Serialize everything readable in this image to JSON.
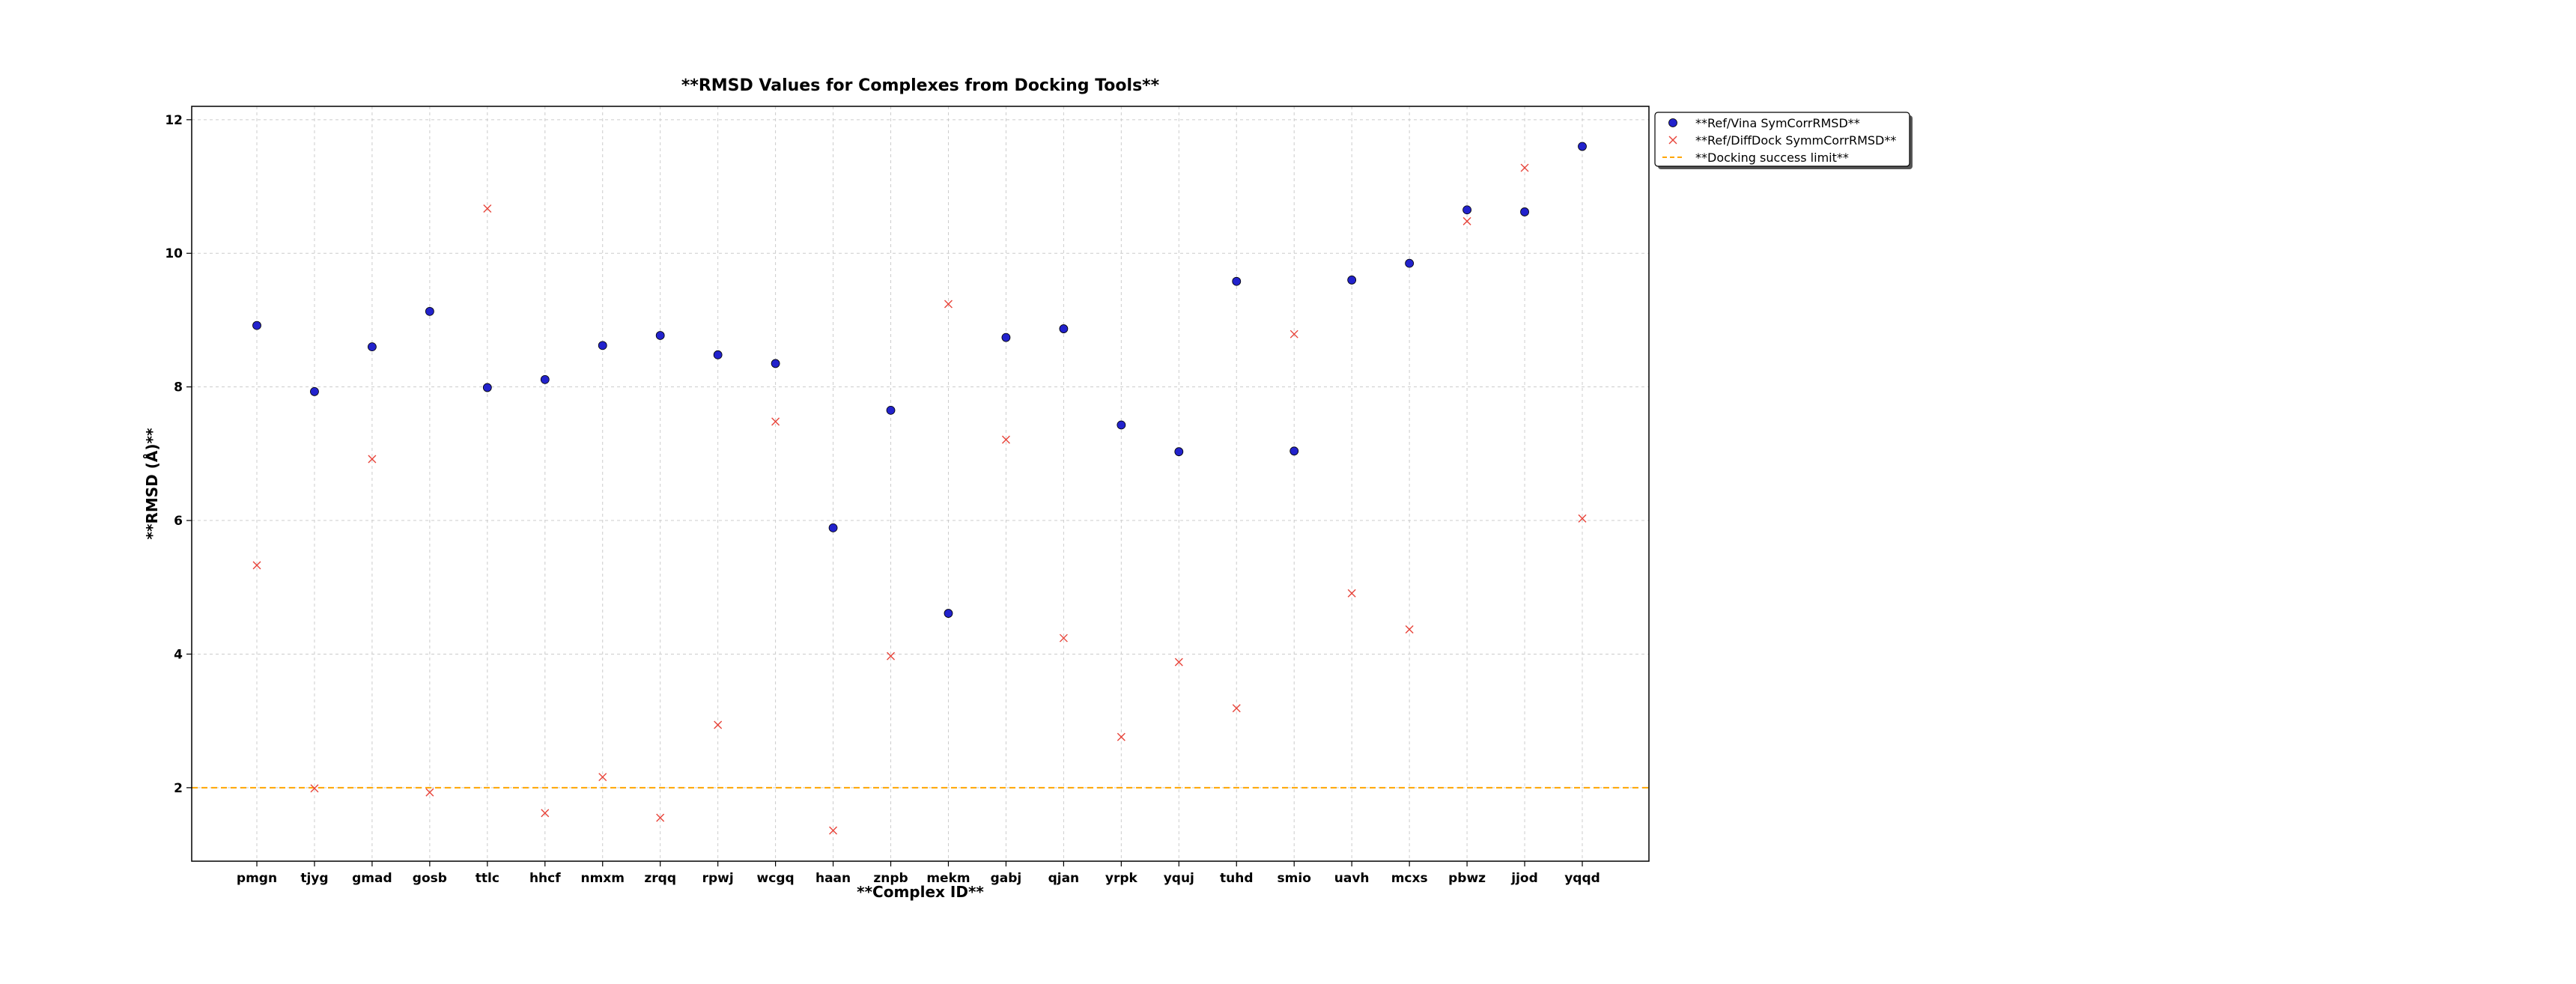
{
  "chart_data": {
    "type": "scatter",
    "title": "**RMSD Values for Complexes from Docking Tools**",
    "xlabel": "**Complex ID**",
    "ylabel": "**RMSD (Å)**",
    "categories": [
      "pmgn",
      "tjyg",
      "gmad",
      "gosb",
      "ttlc",
      "hhcf",
      "nmxm",
      "zrqq",
      "rpwj",
      "wcgq",
      "haan",
      "znpb",
      "mekm",
      "gabj",
      "qjan",
      "yrpk",
      "yquj",
      "tuhd",
      "smio",
      "uavh",
      "mcxs",
      "pbwz",
      "jjod",
      "yqqd"
    ],
    "ylim": [
      0.9,
      12.2
    ],
    "yticks": [
      2,
      4,
      6,
      8,
      10,
      12
    ],
    "grid": true,
    "legend_position": "outside-top-right",
    "series": [
      {
        "name": "**Ref/Vina SymCorrRMSD**",
        "marker": "circle",
        "color": "#2222cc",
        "values": [
          8.92,
          7.93,
          8.6,
          9.13,
          7.99,
          8.11,
          8.62,
          8.77,
          8.48,
          8.35,
          5.89,
          7.65,
          4.61,
          8.74,
          8.87,
          7.43,
          7.03,
          9.58,
          7.04,
          9.6,
          9.85,
          10.65,
          10.62,
          11.6
        ]
      },
      {
        "name": "**Ref/DiffDock SymmCorrRMSD**",
        "marker": "x",
        "color": "#e8443a",
        "values": [
          5.33,
          1.99,
          6.92,
          1.93,
          10.67,
          1.62,
          2.16,
          1.55,
          2.94,
          7.48,
          1.36,
          3.97,
          9.24,
          7.21,
          4.24,
          2.76,
          3.88,
          3.19,
          8.79,
          4.91,
          4.37,
          10.48,
          11.28,
          6.03
        ]
      }
    ],
    "hlines": [
      {
        "name": "**Docking success limit**",
        "y": 2.0,
        "color": "#ffa500",
        "style": "dashed"
      }
    ]
  }
}
